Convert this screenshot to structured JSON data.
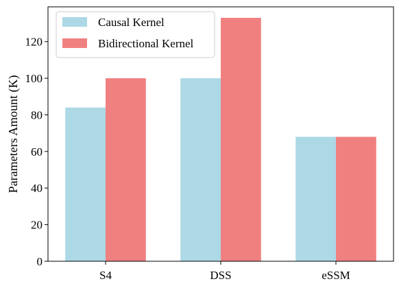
{
  "chart_data": {
    "type": "bar",
    "categories": [
      "S4",
      "DSS",
      "eSSM"
    ],
    "series": [
      {
        "name": "Causal Kernel",
        "values": [
          84,
          100,
          68
        ],
        "color": "#add8e6"
      },
      {
        "name": "Bidirectional Kernel",
        "values": [
          100,
          133,
          68
        ],
        "color": "#f08080"
      }
    ],
    "ylabel": "Parameters Amount (K)",
    "xlabel": "",
    "title": "",
    "ylim": [
      0,
      139
    ],
    "yticks": [
      0,
      20,
      40,
      60,
      80,
      100,
      120
    ],
    "legend_position": "top-left",
    "grid": false
  }
}
